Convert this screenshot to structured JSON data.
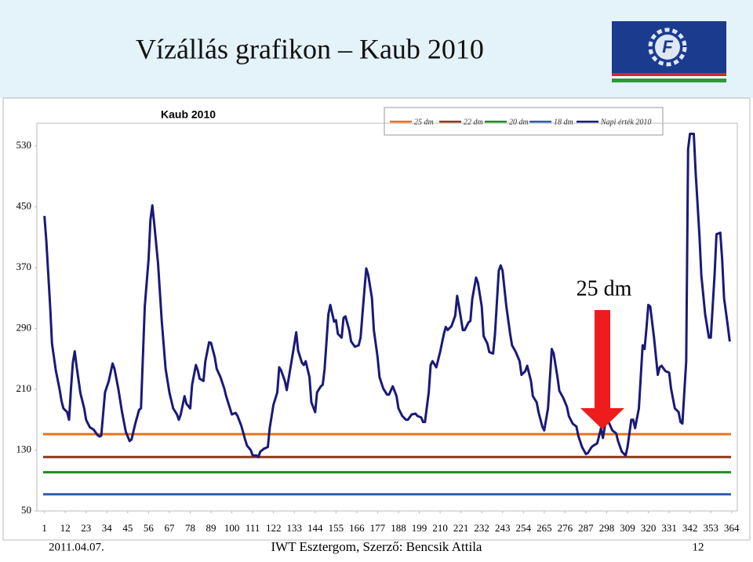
{
  "header": {
    "title": "Vízállás grafikon – Kaub 2010",
    "logo_letter": "F"
  },
  "chart_data": {
    "type": "line",
    "title": "Kaub  2010",
    "annotation": "25 dm",
    "xlim": [
      -3,
      367
    ],
    "ylim": [
      50,
      560
    ],
    "xticks": [
      1,
      12,
      23,
      34,
      45,
      56,
      67,
      78,
      89,
      100,
      111,
      122,
      133,
      144,
      155,
      166,
      177,
      188,
      199,
      210,
      221,
      232,
      243,
      254,
      265,
      276,
      287,
      298,
      309,
      320,
      331,
      342,
      353,
      364
    ],
    "yticks": [
      50,
      130,
      210,
      290,
      370,
      450,
      530
    ],
    "grid": false,
    "reference_lines": [
      {
        "name": "25 dm",
        "color": "#e8731e",
        "value": 151
      },
      {
        "name": "22 dm",
        "color": "#8b3a1a",
        "value": 121
      },
      {
        "name": "20 dm",
        "color": "#1f8a22",
        "value": 101
      },
      {
        "name": "18 dm",
        "color": "#2f5ca8",
        "value": 72
      }
    ],
    "x": [
      1,
      2,
      4,
      5,
      7,
      9,
      10,
      11,
      13,
      14,
      15,
      16,
      17,
      18,
      20,
      22,
      23,
      25,
      27,
      29,
      30,
      31,
      33,
      35,
      37,
      38,
      40,
      42,
      44,
      46,
      47,
      49,
      51,
      52,
      54,
      56,
      57,
      58,
      59,
      61,
      63,
      65,
      67,
      69,
      71,
      72,
      73,
      75,
      76,
      78,
      79,
      81,
      82,
      83,
      85,
      86,
      88,
      89,
      91,
      92,
      94,
      96,
      97,
      99,
      100,
      102,
      103,
      105,
      107,
      108,
      110,
      111,
      113,
      114,
      115,
      117,
      119,
      120,
      122,
      124,
      125,
      126,
      128,
      129,
      131,
      132,
      134,
      135,
      137,
      138,
      139,
      141,
      142,
      144,
      145,
      147,
      148,
      149,
      151,
      152,
      154,
      155,
      156,
      158,
      159,
      160,
      162,
      163,
      165,
      167,
      168,
      170,
      171,
      172,
      174,
      175,
      177,
      178,
      180,
      182,
      183,
      185,
      187,
      188,
      190,
      192,
      193,
      195,
      197,
      198,
      200,
      201,
      202,
      204,
      205,
      206,
      208,
      209,
      210,
      212,
      213,
      214,
      216,
      218,
      219,
      220,
      222,
      223,
      225,
      226,
      227,
      229,
      230,
      232,
      233,
      235,
      236,
      238,
      239,
      241,
      242,
      243,
      245,
      247,
      248,
      250,
      252,
      253,
      255,
      256,
      258,
      259,
      261,
      262,
      264,
      265,
      267,
      269,
      270,
      272,
      273,
      275,
      277,
      278,
      280,
      282,
      283,
      285,
      287,
      288,
      290,
      291,
      293,
      295,
      296,
      298,
      299,
      301,
      303,
      304,
      306,
      308,
      309,
      311,
      312,
      313,
      315,
      317,
      318,
      319,
      320,
      321,
      323,
      325,
      326,
      327,
      329,
      331,
      332,
      334,
      336,
      337,
      338,
      340,
      341,
      342,
      344,
      345,
      347,
      348,
      350,
      352,
      353,
      355,
      356,
      358,
      359,
      360,
      362,
      363
    ],
    "series": [
      {
        "name": "Napi érték 2010",
        "color": "#1a1a78",
        "values": [
          438,
          405,
          320,
          270,
          235,
          210,
          195,
          185,
          180,
          170,
          210,
          245,
          260,
          240,
          205,
          185,
          170,
          160,
          157,
          150,
          148,
          149,
          206,
          221,
          244,
          237,
          211,
          180,
          154,
          142,
          144,
          165,
          183,
          185,
          319,
          381,
          433,
          452,
          428,
          376,
          299,
          237,
          206,
          185,
          177,
          170,
          177,
          201,
          191,
          185,
          216,
          242,
          235,
          224,
          221,
          247,
          272,
          271,
          252,
          237,
          226,
          211,
          201,
          185,
          177,
          179,
          175,
          162,
          144,
          136,
          130,
          123,
          123,
          121,
          128,
          132,
          134,
          159,
          190,
          206,
          239,
          235,
          221,
          209,
          239,
          254,
          285,
          261,
          245,
          242,
          247,
          226,
          193,
          180,
          206,
          214,
          216,
          237,
          309,
          321,
          299,
          301,
          283,
          278,
          304,
          306,
          288,
          273,
          266,
          268,
          278,
          340,
          369,
          361,
          330,
          288,
          252,
          226,
          211,
          203,
          203,
          214,
          201,
          185,
          175,
          170,
          170,
          177,
          178,
          175,
          173,
          167,
          167,
          206,
          242,
          247,
          239,
          249,
          259,
          283,
          292,
          288,
          293,
          307,
          333,
          319,
          288,
          288,
          298,
          300,
          329,
          357,
          350,
          319,
          280,
          270,
          259,
          257,
          283,
          366,
          373,
          366,
          319,
          283,
          268,
          259,
          247,
          229,
          234,
          241,
          221,
          201,
          193,
          180,
          161,
          156,
          185,
          263,
          257,
          226,
          208,
          199,
          187,
          175,
          165,
          161,
          149,
          134,
          125,
          126,
          134,
          136,
          139,
          159,
          146,
          175,
          167,
          156,
          152,
          142,
          128,
          123,
          134,
          170,
          170,
          159,
          185,
          268,
          263,
          290,
          321,
          319,
          278,
          229,
          239,
          241,
          234,
          232,
          211,
          185,
          180,
          167,
          165,
          247,
          526,
          546,
          546,
          495,
          412,
          360,
          309,
          278,
          278,
          361,
          414,
          416,
          381,
          330,
          293,
          273
        ]
      }
    ]
  },
  "footer": {
    "date": "2011.04.07.",
    "author": "IWT Esztergom, Szerző: Bencsik Attila",
    "page": "12"
  }
}
